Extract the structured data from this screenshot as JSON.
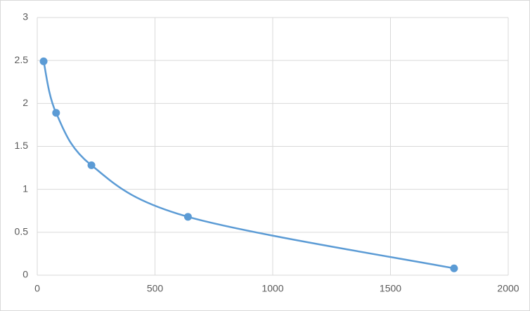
{
  "chart_data": {
    "type": "scatter",
    "series": [
      {
        "x": [
          27,
          80,
          230,
          640,
          1770
        ],
        "values": [
          2.49,
          1.89,
          1.28,
          0.68,
          0.08
        ],
        "color": "#5b9bd5"
      }
    ],
    "smooth": true,
    "xlim": [
      0,
      2000
    ],
    "xticks": [
      0,
      500,
      1000,
      1500,
      2000
    ],
    "ylim": [
      0,
      3
    ],
    "yticks": [
      0,
      0.5,
      1,
      1.5,
      2,
      2.5,
      3
    ],
    "grid": true
  }
}
